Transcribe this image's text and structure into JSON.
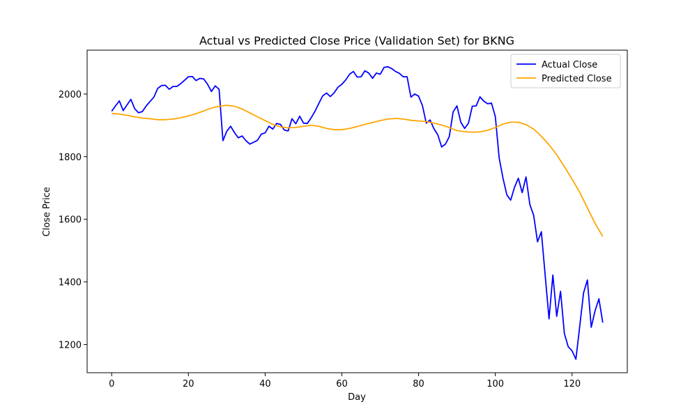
{
  "chart_data": {
    "type": "line",
    "title": "Actual vs Predicted Close Price (Validation Set) for BKNG",
    "xlabel": "Day",
    "ylabel": "Close Price",
    "xlim": [
      -6.4,
      134.4
    ],
    "ylim": [
      1110,
      2140
    ],
    "xticks": [
      0,
      20,
      40,
      60,
      80,
      100,
      120
    ],
    "yticks": [
      1200,
      1400,
      1600,
      1800,
      2000
    ],
    "grid": false,
    "legend_position": "top-right",
    "series": [
      {
        "name": "Actual Close",
        "color": "#0000ff",
        "x": [
          0,
          1,
          2,
          3,
          4,
          5,
          6,
          7,
          8,
          9,
          10,
          11,
          12,
          13,
          14,
          15,
          16,
          17,
          18,
          19,
          20,
          21,
          22,
          23,
          24,
          25,
          26,
          27,
          28,
          29,
          30,
          31,
          32,
          33,
          34,
          35,
          36,
          37,
          38,
          39,
          40,
          41,
          42,
          43,
          44,
          45,
          46,
          47,
          48,
          49,
          50,
          51,
          52,
          53,
          54,
          55,
          56,
          57,
          58,
          59,
          60,
          61,
          62,
          63,
          64,
          65,
          66,
          67,
          68,
          69,
          70,
          71,
          72,
          73,
          74,
          75,
          76,
          77,
          78,
          79,
          80,
          81,
          82,
          83,
          84,
          85,
          86,
          87,
          88,
          89,
          90,
          91,
          92,
          93,
          94,
          95,
          96,
          97,
          98,
          99,
          100,
          101,
          102,
          103,
          104,
          105,
          106,
          107,
          108,
          109,
          110,
          111,
          112,
          113,
          114,
          115,
          116,
          117,
          118,
          119,
          120,
          121,
          122,
          123,
          124,
          125,
          126,
          127,
          128
        ],
        "y": [
          1945,
          1962,
          1978,
          1947,
          1965,
          1983,
          1953,
          1940,
          1944,
          1962,
          1976,
          1990,
          2018,
          2027,
          2028,
          2015,
          2024,
          2024,
          2033,
          2044,
          2055,
          2056,
          2043,
          2050,
          2048,
          2031,
          2008,
          2026,
          2015,
          1851,
          1881,
          1897,
          1877,
          1860,
          1866,
          1851,
          1840,
          1846,
          1852,
          1872,
          1876,
          1897,
          1888,
          1906,
          1903,
          1885,
          1882,
          1921,
          1905,
          1929,
          1907,
          1906,
          1924,
          1945,
          1970,
          1994,
          2003,
          1992,
          2004,
          2022,
          2031,
          2045,
          2063,
          2072,
          2054,
          2055,
          2074,
          2067,
          2050,
          2067,
          2063,
          2085,
          2087,
          2081,
          2072,
          2066,
          2055,
          2055,
          1990,
          2000,
          1993,
          1963,
          1907,
          1917,
          1889,
          1870,
          1831,
          1840,
          1864,
          1943,
          1962,
          1910,
          1890,
          1907,
          1961,
          1962,
          1991,
          1977,
          1969,
          1971,
          1928,
          1796,
          1731,
          1678,
          1661,
          1702,
          1731,
          1685,
          1735,
          1647,
          1612,
          1528,
          1560,
          1420,
          1282,
          1422,
          1290,
          1370,
          1235,
          1193,
          1180,
          1153,
          1258,
          1365,
          1406,
          1255,
          1308,
          1346,
          1270
        ]
      },
      {
        "name": "Predicted Close",
        "color": "#ffa500",
        "x": [
          0,
          2,
          4,
          6,
          8,
          10,
          12,
          14,
          16,
          18,
          20,
          22,
          24,
          26,
          28,
          30,
          32,
          34,
          36,
          38,
          40,
          42,
          44,
          46,
          48,
          50,
          52,
          54,
          56,
          58,
          60,
          62,
          64,
          66,
          68,
          70,
          72,
          74,
          76,
          78,
          80,
          82,
          84,
          86,
          88,
          90,
          92,
          94,
          96,
          98,
          100,
          102,
          104,
          106,
          108,
          110,
          112,
          114,
          116,
          118,
          120,
          122,
          124,
          126,
          128
        ],
        "y": [
          1938,
          1936,
          1932,
          1927,
          1923,
          1921,
          1918,
          1918,
          1920,
          1924,
          1930,
          1937,
          1946,
          1955,
          1961,
          1964,
          1961,
          1952,
          1940,
          1927,
          1915,
          1903,
          1895,
          1892,
          1893,
          1897,
          1900,
          1897,
          1890,
          1886,
          1886,
          1890,
          1896,
          1903,
          1909,
          1915,
          1920,
          1922,
          1920,
          1916,
          1914,
          1912,
          1907,
          1901,
          1893,
          1883,
          1880,
          1878,
          1879,
          1884,
          1893,
          1904,
          1910,
          1910,
          1902,
          1888,
          1865,
          1838,
          1806,
          1768,
          1728,
          1686,
          1636,
          1587,
          1545
        ]
      }
    ]
  }
}
